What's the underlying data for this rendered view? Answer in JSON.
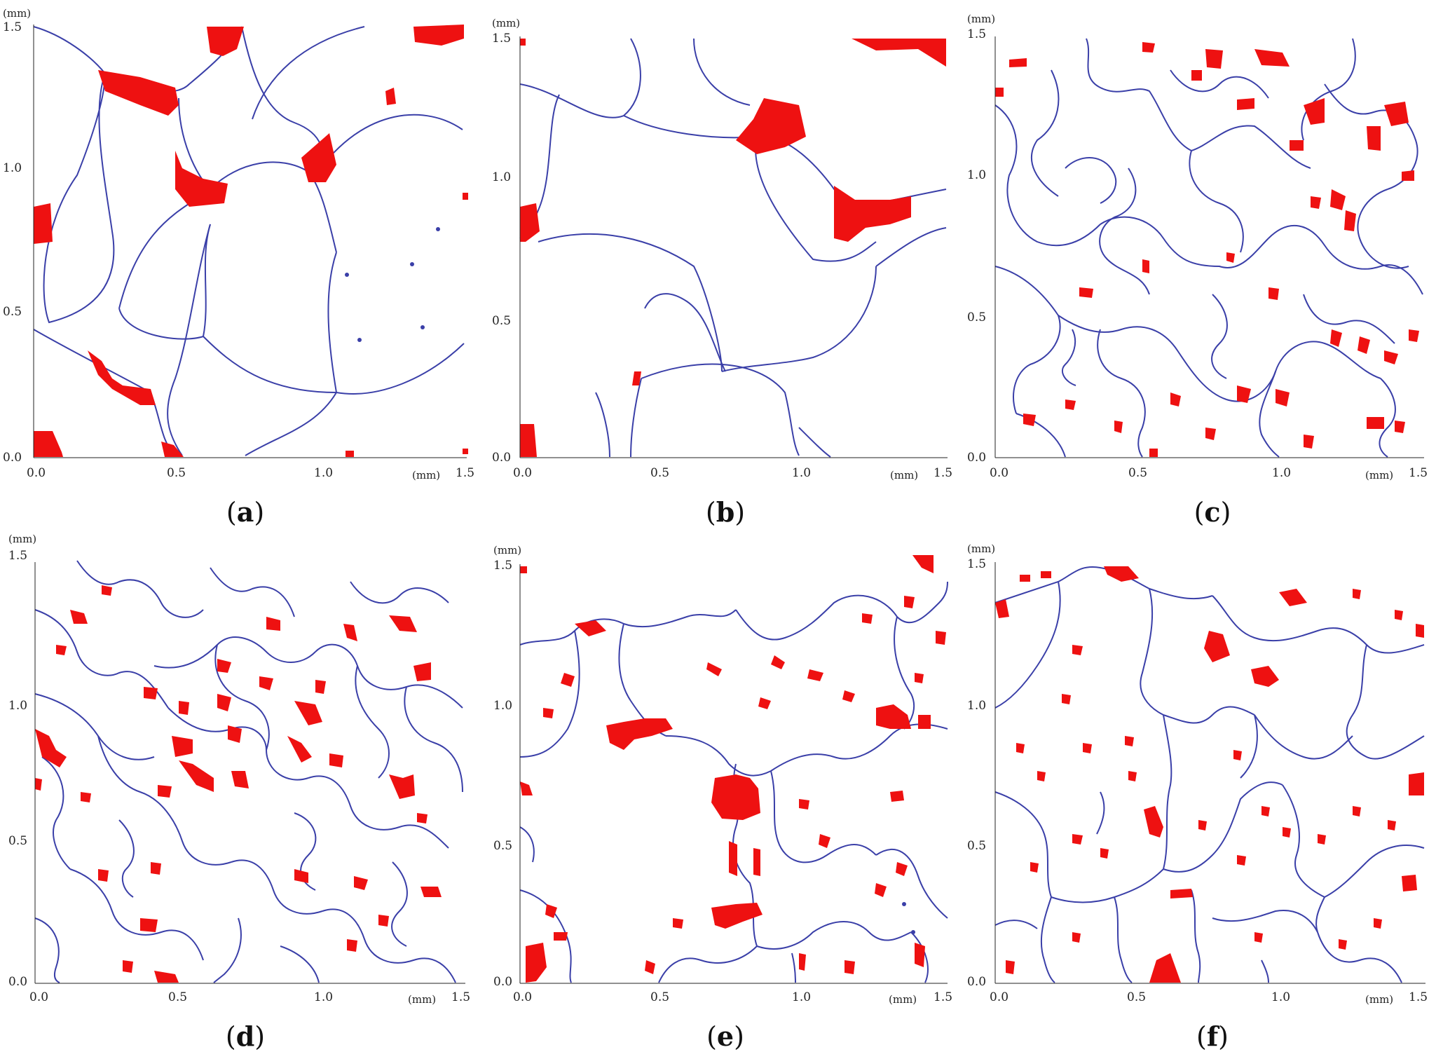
{
  "figure": {
    "axis_unit": "(mm)",
    "x_ticks": [
      "0.0",
      "0.5",
      "1.0",
      "1.5"
    ],
    "y_ticks": [
      "0.0",
      "0.5",
      "1.0",
      "1.5"
    ],
    "colors": {
      "boundary": "#3a3fa8",
      "phase": "#ee1111",
      "text": "#222222"
    }
  },
  "panels": [
    {
      "id": "a",
      "caption_open": "(",
      "caption_letter": "a",
      "caption_close": ")"
    },
    {
      "id": "b",
      "caption_open": "(",
      "caption_letter": "b",
      "caption_close": ")"
    },
    {
      "id": "c",
      "caption_open": "(",
      "caption_letter": "c",
      "caption_close": ")"
    },
    {
      "id": "d",
      "caption_open": "(",
      "caption_letter": "d",
      "caption_close": ")"
    },
    {
      "id": "e",
      "caption_open": "(",
      "caption_letter": "e",
      "caption_close": ")"
    },
    {
      "id": "f",
      "caption_open": "(",
      "caption_letter": "f",
      "caption_close": ")"
    }
  ]
}
